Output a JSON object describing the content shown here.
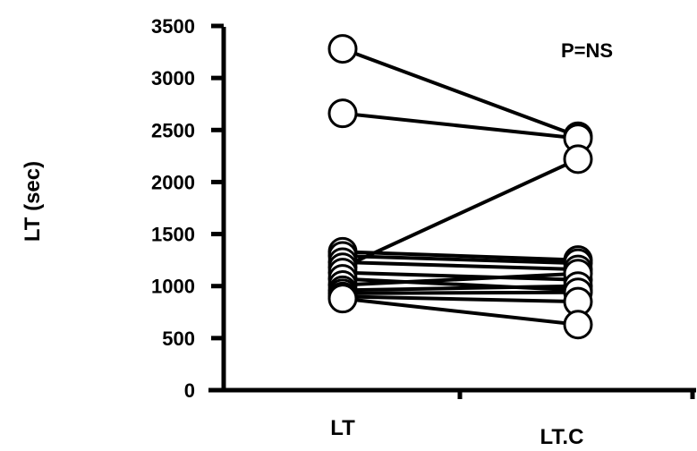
{
  "chart_data": {
    "type": "line",
    "title": "",
    "ylabel": "LT (sec)",
    "xlabel": "",
    "categories": [
      "LT",
      "LT.C"
    ],
    "ylim": [
      0,
      3500
    ],
    "yticks": [
      0,
      500,
      1000,
      1500,
      2000,
      2500,
      3000,
      3500
    ],
    "annotation": "P=NS",
    "grid": false,
    "legend": "none",
    "marker": "open-circle",
    "line_color": "#000000",
    "series": [
      {
        "values": [
          3280,
          2440
        ]
      },
      {
        "values": [
          2660,
          2420
        ]
      },
      {
        "values": [
          1330,
          1250
        ]
      },
      {
        "values": [
          1290,
          1220
        ]
      },
      {
        "values": [
          1230,
          1160
        ]
      },
      {
        "values": [
          1180,
          2220
        ]
      },
      {
        "values": [
          1130,
          1060
        ]
      },
      {
        "values": [
          1070,
          960
        ]
      },
      {
        "values": [
          1010,
          1120
        ]
      },
      {
        "values": [
          960,
          1000
        ]
      },
      {
        "values": [
          930,
          940
        ]
      },
      {
        "values": [
          900,
          850
        ]
      },
      {
        "values": [
          880,
          630
        ]
      }
    ]
  }
}
